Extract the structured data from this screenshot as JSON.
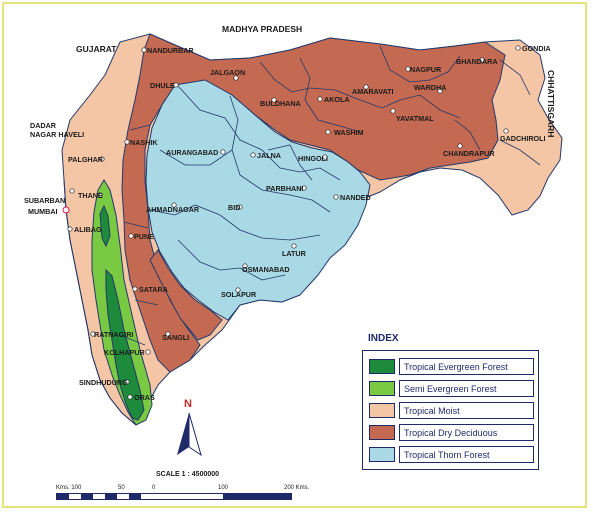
{
  "map": {
    "neighbors": {
      "madhya_pradesh": "MADHYA PRADESH",
      "gujarat": "GUJARAT",
      "chhattisgarh": "CHHATTISGARH",
      "dadar_nagar_haveli": [
        "DADAR",
        "NAGAR HAVELI"
      ]
    },
    "places": {
      "nandurbar": "NANDURBAR",
      "dhule": "DHULE",
      "jalgaon": "JALGAON",
      "buldhana": "BULDHANA",
      "akola": "AKOLA",
      "amaravati": "AMARAVATI",
      "nagpur": "NAGPUR",
      "bhandara": "BHANDARA",
      "gondia": "GONDIA",
      "wardha": "WARDHA",
      "yavatmal": "YAVATMAL",
      "washim": "WASHIM",
      "chandrapur": "CHANDRAPUR",
      "gadchiroli": "GADCHIROLI",
      "nashik": "NASHIK",
      "aurangabad": "AURANGABAD",
      "jalna": "JALNA",
      "hingoli": "HINGOLI",
      "parbhani": "PARBHANI",
      "nanded": "NANDED",
      "palghar": "PALGHAR",
      "thane": "THANE",
      "suburban": "SUBARBAN",
      "mumbai": "MUMBAI",
      "alibag": "ALIBAG",
      "pune": "PUNE",
      "ahmadnagar": "AHMADNAGAR",
      "bid": "BID",
      "latur": "LATUR",
      "osmanabad": "OSMANABAD",
      "solapur": "SOLAPUR",
      "satara": "SATARA",
      "sangli": "SANGLI",
      "ratnagiri": "RATNAGIRI",
      "kolhapur": "KOLHAPUR",
      "sindhudurg": "SINDHUDURG",
      "oras": "ORAS"
    }
  },
  "legend": {
    "title": "INDEX",
    "items": [
      {
        "label": "Tropical Evergreen Forest",
        "color": "#1e8a3c"
      },
      {
        "label": "Semi Evergreen Forest",
        "color": "#7ac943"
      },
      {
        "label": "Tropical Moist",
        "color": "#f4c6a5"
      },
      {
        "label": "Tropical Dry Deciduous",
        "color": "#c46a52"
      },
      {
        "label": "Tropical Thorn Forest",
        "color": "#a9d9e4"
      }
    ]
  },
  "scale": {
    "title": "SCALE 1 : 4500000",
    "labels": [
      "Kms. 100",
      "50",
      "0",
      "100",
      "200 Kms."
    ]
  },
  "north": "N",
  "colors": {
    "frame": "#e9e27a",
    "outline": "#23386b",
    "text": "#1f2a6b"
  }
}
